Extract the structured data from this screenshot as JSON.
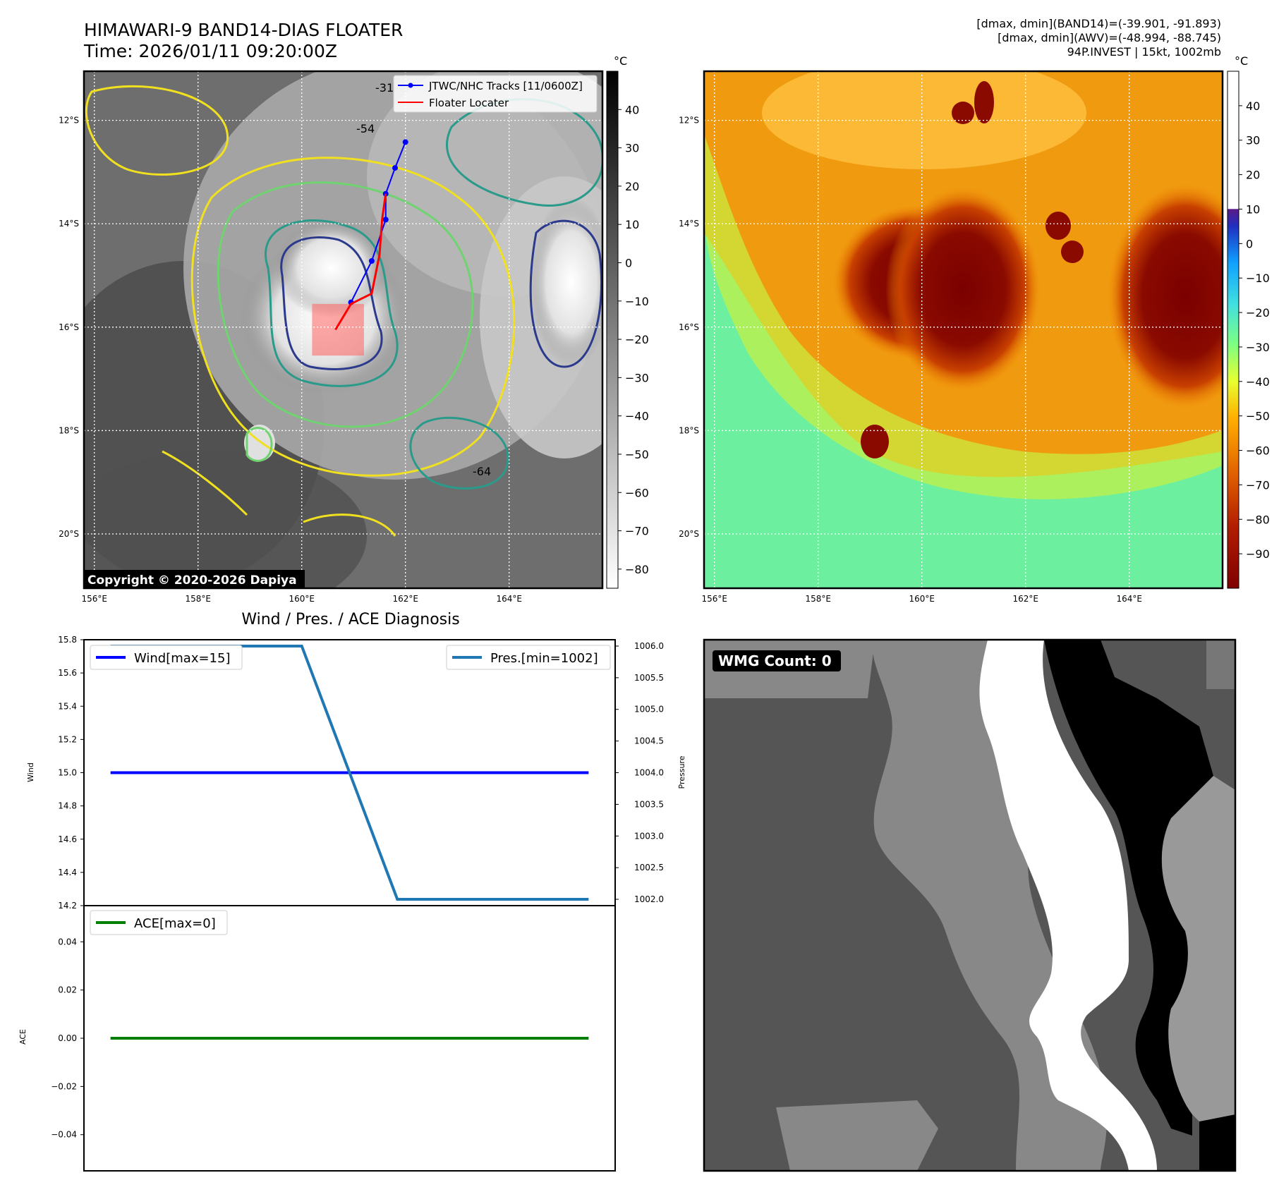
{
  "header": {
    "title_line1": "HIMAWARI-9 BAND14-DIAS FLOATER",
    "title_line2": "Time: 2026/01/11 09:20:00Z",
    "stats_line1": "[dmax, dmin](BAND14)=(-39.901, -91.893)",
    "stats_line2": "[dmax, dmin](AWV)=(-48.994, -88.745)",
    "stats_line3": "94P.INVEST | 15kt, 1002mb"
  },
  "map": {
    "lon_labels": [
      "156°E",
      "158°E",
      "160°E",
      "162°E",
      "164°E"
    ],
    "lon_values": [
      156,
      158,
      160,
      162,
      164
    ],
    "lat_labels": [
      "12°S",
      "14°S",
      "16°S",
      "18°S",
      "20°S"
    ],
    "lat_values": [
      -12,
      -14,
      -16,
      -18,
      -20
    ],
    "extent": {
      "lon": [
        155.8,
        165.8
      ],
      "lat": [
        -11.05,
        -21.05
      ]
    },
    "copyright": "Copyright © 2020-2026 Dapiya",
    "legend_track": "JTWC/NHC Tracks [11/0600Z]",
    "legend_locater": "Floater Locater",
    "contour_labels": [
      "-54",
      "-64",
      "-31"
    ],
    "track_points": [
      {
        "lon": 162.0,
        "lat": -12.42
      },
      {
        "lon": 161.8,
        "lat": -12.92
      },
      {
        "lon": 161.62,
        "lat": -13.42
      },
      {
        "lon": 161.62,
        "lat": -13.92
      },
      {
        "lon": 161.35,
        "lat": -14.72
      },
      {
        "lon": 160.95,
        "lat": -15.52
      }
    ],
    "locater_points": [
      {
        "lon": 161.62,
        "lat": -13.42
      },
      {
        "lon": 161.55,
        "lat": -13.92
      },
      {
        "lon": 161.5,
        "lat": -14.6
      },
      {
        "lon": 161.35,
        "lat": -15.35
      },
      {
        "lon": 160.95,
        "lat": -15.55
      },
      {
        "lon": 160.65,
        "lat": -16.05
      }
    ],
    "locater_box": {
      "lon": [
        160.2,
        161.2
      ],
      "lat": [
        -15.55,
        -16.55
      ]
    },
    "track_color": "#0000ff",
    "locater_color": "#ff0000"
  },
  "colorbar_left": {
    "unit": "°C",
    "ticks": [
      "40",
      "30",
      "20",
      "10",
      "0",
      "−10",
      "−20",
      "−30",
      "−40",
      "−50",
      "−60",
      "−70",
      "−80"
    ],
    "tick_values": [
      40,
      30,
      20,
      10,
      0,
      -10,
      -20,
      -30,
      -40,
      -50,
      -60,
      -70,
      -80
    ],
    "range": [
      -85,
      50
    ]
  },
  "colorbar_right": {
    "unit": "°C",
    "ticks": [
      "40",
      "30",
      "20",
      "10",
      "0",
      "−10",
      "−20",
      "−30",
      "−40",
      "−50",
      "−60",
      "−70",
      "−80",
      "−90"
    ],
    "tick_values": [
      40,
      30,
      20,
      10,
      0,
      -10,
      -20,
      -30,
      -40,
      -50,
      -60,
      -70,
      -80,
      -90
    ],
    "range": [
      -100,
      50
    ]
  },
  "diagnosis": {
    "title": "Wind / Pres. / ACE Diagnosis",
    "wind_ylabel": "Wind",
    "pres_ylabel": "Pressure",
    "ace_ylabel": "ACE",
    "wind_ticks": [
      "15.8",
      "15.6",
      "15.4",
      "15.2",
      "15.0",
      "14.8",
      "14.6",
      "14.4",
      "14.2"
    ],
    "pres_ticks": [
      "1006.0",
      "1005.5",
      "1005.0",
      "1004.5",
      "1004.0",
      "1003.5",
      "1003.0",
      "1002.5",
      "1002.0"
    ],
    "ace_ticks": [
      "0.04",
      "0.02",
      "0.00",
      "−0.02",
      "−0.04"
    ],
    "legend_wind": "Wind[max=15]",
    "legend_pres": "Pres.[min=1002]",
    "legend_ace": "ACE[max=0]",
    "wind_color": "#0000ff",
    "pres_color": "#1f77b4",
    "ace_color": "#008000"
  },
  "chart_data": [
    {
      "type": "line",
      "title": "Wind / Pres. / ACE Diagnosis",
      "x": [
        0,
        1,
        2,
        3,
        4,
        5
      ],
      "series": [
        {
          "name": "Wind[max=15]",
          "axis": "left",
          "values": [
            15,
            15,
            15,
            15,
            15,
            15
          ]
        },
        {
          "name": "Pres.[min=1002]",
          "axis": "right",
          "values": [
            1006,
            1006,
            1006,
            1002,
            1002,
            1002
          ]
        }
      ],
      "ylabel": "Wind",
      "y2label": "Pressure",
      "ylim": [
        14.2,
        15.8
      ],
      "y2lim": [
        1001.9,
        1006.1
      ]
    },
    {
      "type": "line",
      "x": [
        0,
        1,
        2,
        3,
        4,
        5
      ],
      "series": [
        {
          "name": "ACE[max=0]",
          "values": [
            0,
            0,
            0,
            0,
            0,
            0
          ]
        }
      ],
      "ylabel": "ACE",
      "ylim": [
        -0.055,
        0.055
      ]
    }
  ],
  "wmg": {
    "label": "WMG Count: 0"
  }
}
